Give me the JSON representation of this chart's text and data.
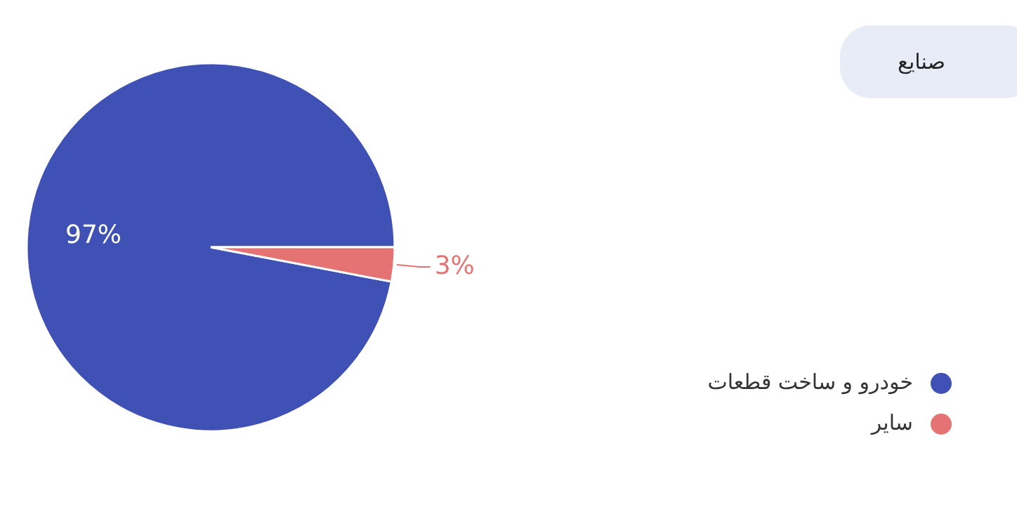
{
  "chart_data": {
    "type": "pie",
    "title": "صنایع",
    "categories": [
      "خودرو و ساخت قطعات",
      "سایر"
    ],
    "values": [
      97,
      3
    ],
    "colors": [
      "#3f51b5",
      "#e57373"
    ],
    "value_labels": [
      "97%",
      "3%"
    ],
    "legend": "bottom right"
  }
}
